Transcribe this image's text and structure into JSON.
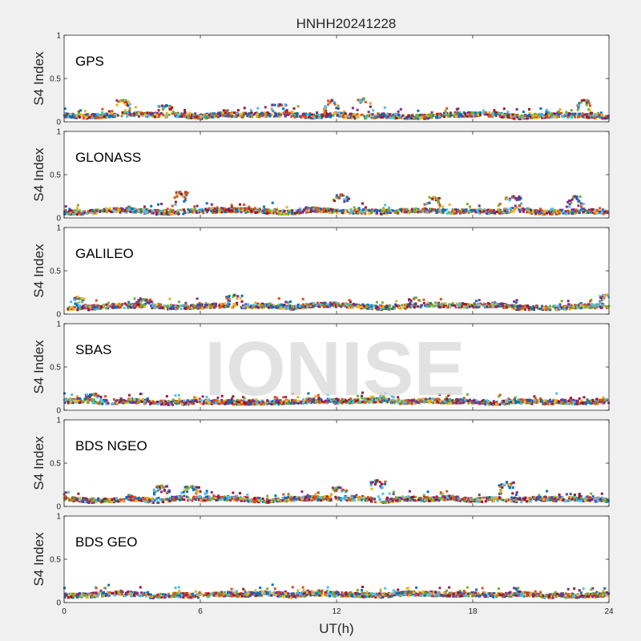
{
  "figure": {
    "title": "HNHH20241228",
    "xlabel": "UT(h)",
    "watermark": "IONISE"
  },
  "colors": [
    "#0072bd",
    "#d95319",
    "#edb120",
    "#7e2f8e",
    "#77ac30",
    "#4dbeee",
    "#a2142f"
  ],
  "chart_data": [
    {
      "type": "scatter",
      "panel_label": "GPS",
      "ylabel": "S4 Index",
      "xlim": [
        0,
        24
      ],
      "ylim": [
        0,
        1
      ],
      "xticks": [
        0,
        6,
        12,
        18,
        24
      ],
      "yticks": [
        0,
        0.5,
        1
      ],
      "ytick_labels": [
        "0",
        "0.5",
        "1"
      ],
      "baseline_s4": 0.07,
      "peaks": [
        {
          "x": 2.6,
          "y": 0.25
        },
        {
          "x": 4.5,
          "y": 0.19
        },
        {
          "x": 9.5,
          "y": 0.2
        },
        {
          "x": 11.8,
          "y": 0.25
        },
        {
          "x": 13.2,
          "y": 0.27
        },
        {
          "x": 22.9,
          "y": 0.25
        }
      ]
    },
    {
      "type": "scatter",
      "panel_label": "GLONASS",
      "ylabel": "S4 Index",
      "xlim": [
        0,
        24
      ],
      "ylim": [
        0,
        1
      ],
      "xticks": [
        0,
        6,
        12,
        18,
        24
      ],
      "yticks": [
        0,
        0.5,
        1
      ],
      "ytick_labels": [
        "0",
        "0.5",
        "1"
      ],
      "baseline_s4": 0.08,
      "peaks": [
        {
          "x": 5.1,
          "y": 0.3
        },
        {
          "x": 12.2,
          "y": 0.27
        },
        {
          "x": 16.3,
          "y": 0.24
        },
        {
          "x": 19.8,
          "y": 0.25
        },
        {
          "x": 22.5,
          "y": 0.25
        }
      ]
    },
    {
      "type": "scatter",
      "panel_label": "GALILEO",
      "ylabel": "S4 Index",
      "xlim": [
        0,
        24
      ],
      "ylim": [
        0,
        1
      ],
      "xticks": [
        0,
        6,
        12,
        18,
        24
      ],
      "yticks": [
        0,
        0.5,
        1
      ],
      "ytick_labels": [
        "0",
        "0.5",
        "1"
      ],
      "baseline_s4": 0.09,
      "peaks": [
        {
          "x": 0.6,
          "y": 0.2
        },
        {
          "x": 3.5,
          "y": 0.17
        },
        {
          "x": 7.5,
          "y": 0.22
        },
        {
          "x": 15.5,
          "y": 0.19
        },
        {
          "x": 23.9,
          "y": 0.22
        }
      ]
    },
    {
      "type": "scatter",
      "panel_label": "SBAS",
      "ylabel": "S4 Index",
      "xlim": [
        0,
        24
      ],
      "ylim": [
        0,
        1
      ],
      "xticks": [
        0,
        6,
        12,
        18,
        24
      ],
      "yticks": [
        0,
        0.5,
        1
      ],
      "ytick_labels": [
        "0",
        "0.5",
        "1"
      ],
      "baseline_s4": 0.1,
      "peaks": [
        {
          "x": 1.3,
          "y": 0.18
        }
      ]
    },
    {
      "type": "scatter",
      "panel_label": "BDS NGEO",
      "ylabel": "S4 Index",
      "xlim": [
        0,
        24
      ],
      "ylim": [
        0,
        1
      ],
      "xticks": [
        0,
        6,
        12,
        18,
        24
      ],
      "yticks": [
        0,
        0.5,
        1
      ],
      "ytick_labels": [
        "0",
        "0.5",
        "1"
      ],
      "baseline_s4": 0.08,
      "peaks": [
        {
          "x": 4.3,
          "y": 0.24
        },
        {
          "x": 5.6,
          "y": 0.23
        },
        {
          "x": 12.1,
          "y": 0.22
        },
        {
          "x": 13.8,
          "y": 0.3
        },
        {
          "x": 19.5,
          "y": 0.28
        }
      ]
    },
    {
      "type": "scatter",
      "panel_label": "BDS GEO",
      "ylabel": "S4 Index",
      "xlim": [
        0,
        24
      ],
      "ylim": [
        0,
        1
      ],
      "xticks": [
        0,
        6,
        12,
        18,
        24
      ],
      "yticks": [
        0,
        0.5,
        1
      ],
      "ytick_labels": [
        "0",
        "0.5",
        "1"
      ],
      "baseline_s4": 0.09,
      "peaks": []
    }
  ]
}
